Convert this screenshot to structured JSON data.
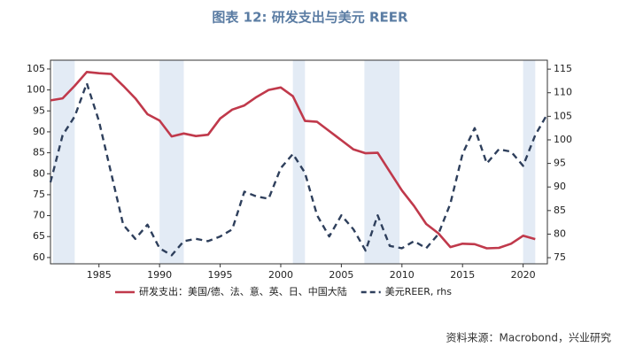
{
  "chart_data": {
    "type": "line",
    "title": "图表 12: 研发支出与美元 REER",
    "y_unit": "%",
    "source": "资料来源：Macrobond，兴业研究",
    "xlim": [
      1981,
      2022
    ],
    "xticks": [
      1985,
      1990,
      1995,
      2000,
      2005,
      2010,
      2015,
      2020
    ],
    "ylim": [
      58.5,
      107.1
    ],
    "yticks": [
      60,
      65,
      70,
      75,
      80,
      85,
      90,
      95,
      100,
      105
    ],
    "y2lim": [
      73.7,
      116.9
    ],
    "y2ticks": [
      75,
      80,
      85,
      90,
      95,
      100,
      105,
      110,
      115
    ],
    "shaded_periods": [
      [
        1981.2,
        1983
      ],
      [
        1990,
        1992
      ],
      [
        2001,
        2002
      ],
      [
        2006.9,
        2009.8
      ],
      [
        2020,
        2021
      ]
    ],
    "shade_color": "#e3ebf5",
    "series": [
      {
        "name": "研发支出：美国/德、法、意、英、日、中国大陆",
        "color": "#c0394b",
        "dash": false,
        "x": [
          1981,
          1982,
          1983,
          1984,
          1985,
          1986,
          1987,
          1988,
          1989,
          1990,
          1991,
          1992,
          1993,
          1994,
          1995,
          1996,
          1997,
          1998,
          1999,
          2000,
          2001,
          2002,
          2003,
          2004,
          2005,
          2006,
          2007,
          2008,
          2009,
          2010,
          2011,
          2012,
          2013,
          2014,
          2015,
          2016,
          2017,
          2018,
          2019,
          2020,
          2021
        ],
        "values": [
          97.5,
          98,
          101,
          104.3,
          104,
          103.8,
          101,
          98,
          94.2,
          92.7,
          88.9,
          89.6,
          89,
          89.3,
          93.2,
          95.3,
          96.3,
          98.3,
          100,
          100.6,
          98.5,
          92.6,
          92.4,
          90.2,
          88,
          85.8,
          84.9,
          85,
          80.5,
          76,
          72.3,
          68,
          65.8,
          62.5,
          63.3,
          63.2,
          62.2,
          62.3,
          63.3,
          65.2,
          64.4
        ]
      },
      {
        "name": "美元REER, rhs",
        "color": "#2e3f5c",
        "dash": true,
        "axis": "y2",
        "x": [
          1981,
          1982,
          1983,
          1984,
          1985,
          1986,
          1987,
          1988,
          1989,
          1990,
          1991,
          1992,
          1993,
          1994,
          1995,
          1996,
          1997,
          1998,
          1999,
          2000,
          2001,
          2002,
          2003,
          2004,
          2005,
          2006,
          2007,
          2008,
          2009,
          2010,
          2011,
          2012,
          2013,
          2014,
          2015,
          2016,
          2017,
          2018,
          2019,
          2020,
          2021,
          2022
        ],
        "values": [
          91,
          101,
          105,
          112,
          104,
          93,
          82,
          79,
          82,
          77,
          75.5,
          78.5,
          79,
          78.5,
          79.5,
          81,
          89,
          88,
          87.5,
          94,
          97,
          93,
          84,
          79.5,
          84,
          81,
          76.5,
          84,
          77.5,
          77,
          78.5,
          77,
          80,
          86.5,
          97,
          102.5,
          95,
          98,
          97.5,
          94.5,
          101,
          105.5
        ]
      }
    ]
  }
}
